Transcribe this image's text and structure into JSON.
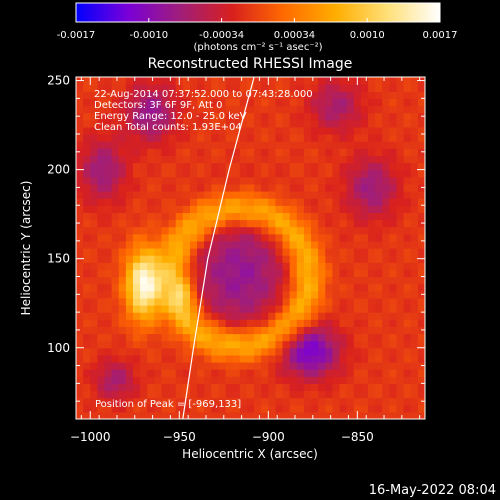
{
  "chart_data": {
    "type": "heatmap",
    "title": "Reconstructed RHESSI Image",
    "xlabel": "Heliocentric X (arcsec)",
    "ylabel": "Heliocentric Y (arcsec)",
    "xlim": [
      -1008,
      -812
    ],
    "ylim": [
      60,
      252
    ],
    "xticks": [
      -1000,
      -950,
      -900,
      -850
    ],
    "yticks": [
      100,
      150,
      200,
      250
    ],
    "grid": false,
    "colorbar": {
      "position": "top",
      "range": [
        -0.0017,
        0.0017
      ],
      "ticks": [
        "-0.0017",
        "-0.0010",
        "-0.00034",
        "0.00034",
        "0.0010",
        "0.0017"
      ],
      "unit_label": "(photons cm⁻² s⁻¹ asec⁻²)",
      "colors": [
        "#0000ff",
        "#7a00d8",
        "#a01e7a",
        "#d8201e",
        "#ff6a00",
        "#ffae00",
        "#ffe07a",
        "#ffffff"
      ]
    },
    "annotations": [
      "22-Aug-2014 07:37:52.000 to 07:43:28.000",
      "Detectors: 3F 6F 9F, Att 0",
      "Energy Range: 12.0 - 25.0 keV",
      "Clean    Total counts: 1.93E+04"
    ],
    "peak_label": "Position of Peak = [-969,133]",
    "peak": [
      -969,
      133
    ],
    "limb_line": [
      [
        -948,
        60
      ],
      [
        -942,
        100
      ],
      [
        -934,
        150
      ],
      [
        -922,
        200
      ],
      [
        -908,
        252
      ]
    ],
    "sources": [
      {
        "x": -970,
        "y": 136,
        "sx": 7,
        "sy": 14,
        "amp": 1.0
      },
      {
        "x": -948,
        "y": 130,
        "sx": 5,
        "sy": 8,
        "amp": 0.35
      },
      {
        "x": -916,
        "y": 142,
        "sx": 20,
        "sy": 24,
        "amp": -0.45
      },
      {
        "x": -876,
        "y": 98,
        "sx": 11,
        "sy": 10,
        "amp": -0.65
      },
      {
        "x": -966,
        "y": 232,
        "sx": 10,
        "sy": 11,
        "amp": -0.45
      },
      {
        "x": -842,
        "y": 190,
        "sx": 10,
        "sy": 12,
        "amp": -0.4
      },
      {
        "x": -993,
        "y": 200,
        "sx": 9,
        "sy": 12,
        "amp": -0.4
      },
      {
        "x": -986,
        "y": 82,
        "sx": 8,
        "sy": 8,
        "amp": -0.35
      },
      {
        "x": -862,
        "y": 236,
        "sx": 10,
        "sy": 10,
        "amp": -0.35
      }
    ],
    "rings": [
      {
        "x": -916,
        "y": 140,
        "r": 38,
        "w": 7,
        "amp": 0.55
      }
    ],
    "background_level": -0.05
  },
  "footer": {
    "timestamp": "16-May-2022 08:04"
  },
  "colors": {
    "limb": "#ffffff",
    "background": "#000000"
  }
}
